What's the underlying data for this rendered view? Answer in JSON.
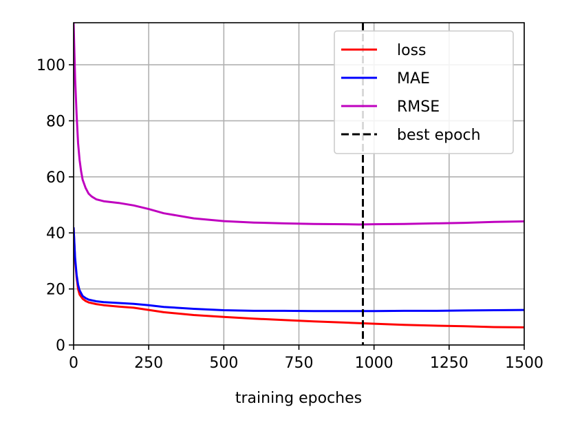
{
  "chart_data": {
    "type": "line",
    "title": "",
    "xlabel": "training epoches",
    "ylabel": "",
    "xlim": [
      0,
      1500
    ],
    "ylim": [
      0,
      115
    ],
    "xticks": [
      0,
      250,
      500,
      750,
      1000,
      1250,
      1500
    ],
    "yticks": [
      0,
      20,
      40,
      60,
      80,
      100
    ],
    "grid": true,
    "legend_position": "top-right",
    "colors": {
      "loss": "#ff0000",
      "MAE": "#0000ff",
      "RMSE": "#bf00bf",
      "best_epoch": "#000000"
    },
    "series": [
      {
        "name": "loss",
        "x": [
          0,
          5,
          10,
          15,
          20,
          30,
          40,
          50,
          75,
          100,
          150,
          200,
          250,
          300,
          400,
          500,
          600,
          700,
          800,
          900,
          1000,
          1100,
          1200,
          1300,
          1400,
          1500
        ],
        "y": [
          42,
          30,
          24,
          20,
          18,
          16.5,
          15.7,
          15.2,
          14.6,
          14.2,
          13.7,
          13.3,
          12.5,
          11.7,
          10.7,
          10.0,
          9.4,
          8.9,
          8.4,
          8.0,
          7.6,
          7.2,
          6.9,
          6.7,
          6.4,
          6.3
        ]
      },
      {
        "name": "MAE",
        "x": [
          0,
          5,
          10,
          15,
          20,
          30,
          40,
          50,
          75,
          100,
          150,
          200,
          250,
          300,
          400,
          500,
          600,
          700,
          800,
          900,
          1000,
          1100,
          1200,
          1300,
          1400,
          1500
        ],
        "y": [
          42,
          31,
          25,
          21.5,
          19.5,
          17.5,
          16.7,
          16.2,
          15.6,
          15.3,
          15.0,
          14.7,
          14.2,
          13.6,
          12.9,
          12.4,
          12.2,
          12.2,
          12.1,
          12.1,
          12.1,
          12.2,
          12.2,
          12.3,
          12.4,
          12.5
        ]
      },
      {
        "name": "RMSE",
        "x": [
          0,
          5,
          10,
          15,
          20,
          25,
          30,
          40,
          50,
          60,
          75,
          100,
          150,
          200,
          250,
          300,
          400,
          500,
          600,
          700,
          800,
          900,
          950,
          1000,
          1100,
          1200,
          1300,
          1400,
          1500
        ],
        "y": [
          115,
          95,
          82,
          72,
          66,
          62,
          59,
          56,
          54,
          53,
          52,
          51.3,
          50.7,
          49.8,
          48.5,
          47,
          45.2,
          44.2,
          43.7,
          43.4,
          43.2,
          43.1,
          43.0,
          43.1,
          43.2,
          43.4,
          43.6,
          43.9,
          44.1
        ]
      }
    ],
    "vlines": [
      {
        "name": "best epoch",
        "x": 963,
        "style": "dashed"
      }
    ],
    "legend": [
      "loss",
      "MAE",
      "RMSE",
      "best epoch"
    ]
  }
}
